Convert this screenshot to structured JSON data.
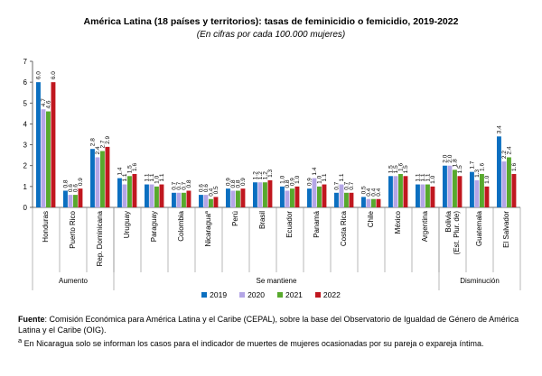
{
  "title": "América Latina (18 países y territorios): tasas de feminicidio o femicidio, 2019-2022",
  "subtitle": "(En cifras por cada 100.000 mujeres)",
  "colors": {
    "2019": "#0b6fc0",
    "2020": "#b4a6e6",
    "2021": "#58a92d",
    "2022": "#c0171f"
  },
  "chart_data": {
    "type": "bar",
    "ylim": [
      0,
      7
    ],
    "yticks": [
      "0",
      "1",
      "2",
      "3",
      "4",
      "5",
      "6",
      "7"
    ],
    "series_names": [
      "2019",
      "2020",
      "2021",
      "2022"
    ],
    "categories": [
      {
        "name": "Honduras",
        "group": "Aumento",
        "values": [
          6.0,
          4.7,
          4.6,
          6.0
        ]
      },
      {
        "name": "Puerto Rico",
        "group": "Aumento",
        "values": [
          0.8,
          0.6,
          0.6,
          0.9
        ]
      },
      {
        "name": "Rep. Dominicana",
        "group": "Aumento",
        "values": [
          2.8,
          2.4,
          2.7,
          2.9
        ]
      },
      {
        "name": "Uruguay",
        "group": "Se mantiene",
        "values": [
          1.4,
          1.1,
          1.5,
          1.6
        ]
      },
      {
        "name": "Paraguay",
        "group": "Se mantiene",
        "values": [
          1.1,
          1.1,
          1.0,
          1.1
        ]
      },
      {
        "name": "Colombia",
        "group": "Se mantiene",
        "values": [
          0.7,
          0.7,
          0.7,
          0.8
        ]
      },
      {
        "name": "Nicaragua",
        "sup": "a",
        "group": "Se mantiene",
        "values": [
          0.6,
          0.6,
          0.4,
          0.5
        ]
      },
      {
        "name": "Perú",
        "group": "Se mantiene",
        "values": [
          0.9,
          0.8,
          0.8,
          0.9
        ]
      },
      {
        "name": "Brasil",
        "group": "Se mantiene",
        "values": [
          1.2,
          1.2,
          1.2,
          1.3
        ]
      },
      {
        "name": "Ecuador",
        "group": "Se mantiene",
        "values": [
          1.0,
          0.8,
          0.9,
          1.0
        ]
      },
      {
        "name": "Panamá",
        "group": "Se mantiene",
        "values": [
          0.9,
          1.4,
          1.0,
          1.1
        ]
      },
      {
        "name": "Costa Rica",
        "group": "Se mantiene",
        "values": [
          0.7,
          1.1,
          0.7,
          0.7
        ]
      },
      {
        "name": "Chile",
        "group": "Se mantiene",
        "values": [
          0.5,
          0.4,
          0.4,
          0.4
        ]
      },
      {
        "name": "México",
        "group": "Se mantiene",
        "values": [
          1.5,
          1.5,
          1.6,
          1.5
        ]
      },
      {
        "name": "Argentina",
        "group": "Se mantiene",
        "values": [
          1.1,
          1.1,
          1.1,
          1.0
        ]
      },
      {
        "name": "Bolivia\n(Est. Plur. de)",
        "group": "Disminución",
        "values": [
          2.0,
          2.0,
          1.8,
          1.5
        ]
      },
      {
        "name": "Guatemala",
        "group": "Disminución",
        "values": [
          1.7,
          1.3,
          1.6,
          1.0
        ]
      },
      {
        "name": "El Salvador",
        "group": "Disminución",
        "values": [
          3.4,
          2.2,
          2.4,
          1.6
        ]
      }
    ],
    "groups": [
      "Aumento",
      "Se mantiene",
      "Disminución"
    ]
  },
  "notes": {
    "source_label": "Fuente",
    "source_text": ": Comisión Económica para América Latina y el Caribe (CEPAL), sobre la base del Observatorio de Igualdad de Género de América Latina y el Caribe (OIG).",
    "footnote_mark": "a",
    "footnote_text": " En Nicaragua solo se informan los casos para el indicador de muertes de mujeres ocasionadas por su pareja o expareja íntima."
  }
}
